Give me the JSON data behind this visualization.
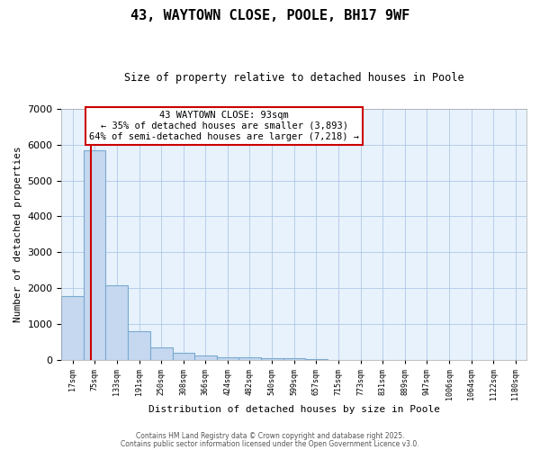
{
  "title": "43, WAYTOWN CLOSE, POOLE, BH17 9WF",
  "subtitle": "Size of property relative to detached houses in Poole",
  "xlabel": "Distribution of detached houses by size in Poole",
  "ylabel": "Number of detached properties",
  "bar_color": "#c5d8f0",
  "bar_edge_color": "#7aaad0",
  "bg_color": "#e8f2fc",
  "annotation_text": "43 WAYTOWN CLOSE: 93sqm\n← 35% of detached houses are smaller (3,893)\n64% of semi-detached houses are larger (7,218) →",
  "vline_x": 93,
  "vline_color": "#cc0000",
  "categories": [
    "17sqm",
    "75sqm",
    "133sqm",
    "191sqm",
    "250sqm",
    "308sqm",
    "366sqm",
    "424sqm",
    "482sqm",
    "540sqm",
    "599sqm",
    "657sqm",
    "715sqm",
    "773sqm",
    "831sqm",
    "889sqm",
    "947sqm",
    "1006sqm",
    "1064sqm",
    "1122sqm",
    "1180sqm"
  ],
  "values": [
    1780,
    5840,
    2080,
    820,
    355,
    220,
    130,
    90,
    80,
    60,
    55,
    40,
    0,
    0,
    0,
    0,
    0,
    0,
    0,
    0,
    0
  ],
  "ylim": [
    0,
    7000
  ],
  "bin_edges": [
    17,
    75,
    133,
    191,
    250,
    308,
    366,
    424,
    482,
    540,
    599,
    657,
    715,
    773,
    831,
    889,
    947,
    1006,
    1064,
    1122,
    1180
  ],
  "last_edge": 1238,
  "yticks": [
    0,
    1000,
    2000,
    3000,
    4000,
    5000,
    6000,
    7000
  ],
  "footer1": "Contains HM Land Registry data © Crown copyright and database right 2025.",
  "footer2": "Contains public sector information licensed under the Open Government Licence v3.0."
}
